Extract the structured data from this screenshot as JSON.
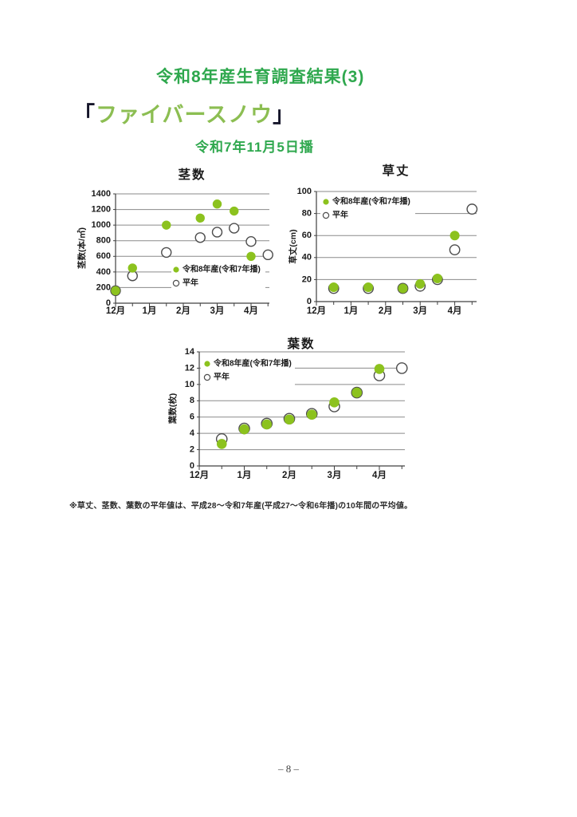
{
  "header": {
    "title": "令和8年産生育調査結果(3)",
    "variety": {
      "open_bracket": "「",
      "name": "ファイバースノウ",
      "close_bracket": "」"
    },
    "sowing_date": "令和7年11月5日播"
  },
  "footer": {
    "note": "※草丈、茎数、葉数の平年値は、平成28～令和7年産(平成27～令和6年播)の10年間の平均値。",
    "page_number": "– 8 –"
  },
  "colors": {
    "title_green": "#2fa84e",
    "variety_green": "#8cbe52",
    "chart_title_green": "#3aa56a",
    "dot_green": "#8cc21e",
    "circle_gray": "#4d4d4d",
    "grid_gray": "#8a8a8a",
    "axis_dark": "#404040"
  },
  "chart_data": [
    {
      "type": "scatter",
      "title": "茎数",
      "ylabel": "茎数(本/㎡)",
      "ylim": [
        0,
        1400
      ],
      "ytick_step": 200,
      "x_tick_labels": [
        "12月",
        "1月",
        "2月",
        "3月",
        "4月"
      ],
      "x_unit": "months after December (0 = 12月)",
      "grid": true,
      "legend_position": "inside-lower-right",
      "series": [
        {
          "name": "令和8年産(令和7年播)",
          "marker": "filled-green-circle",
          "points": [
            [
              0,
              160
            ],
            [
              0.5,
              450
            ],
            [
              1.5,
              1000
            ],
            [
              2.5,
              1090
            ],
            [
              3,
              1270
            ],
            [
              3.5,
              1180
            ],
            [
              4,
              600
            ]
          ]
        },
        {
          "name": "平年",
          "marker": "open-circle",
          "points": [
            [
              0,
              160
            ],
            [
              0.5,
              350
            ],
            [
              1.5,
              650
            ],
            [
              2.5,
              840
            ],
            [
              3,
              910
            ],
            [
              3.5,
              960
            ],
            [
              4,
              790
            ],
            [
              4.5,
              620
            ]
          ]
        }
      ]
    },
    {
      "type": "scatter",
      "title": "草丈",
      "ylabel": "草丈(cm)",
      "ylim": [
        0,
        100
      ],
      "ytick_step": 20,
      "x_tick_labels": [
        "12月",
        "1月",
        "2月",
        "3月",
        "4月"
      ],
      "x_unit": "months after December (0 = 12月)",
      "grid": true,
      "legend_position": "inside-upper-left",
      "series": [
        {
          "name": "令和8年産(令和7年播)",
          "marker": "filled-green-circle",
          "points": [
            [
              0.5,
              13
            ],
            [
              1.5,
              13
            ],
            [
              2.5,
              12
            ],
            [
              3,
              16
            ],
            [
              3.5,
              21
            ],
            [
              4,
              60
            ]
          ]
        },
        {
          "name": "平年",
          "marker": "open-circle",
          "points": [
            [
              0.5,
              12
            ],
            [
              1.5,
              12
            ],
            [
              2.5,
              12
            ],
            [
              3,
              14
            ],
            [
              3.5,
              20
            ],
            [
              4,
              47
            ],
            [
              4.5,
              84
            ]
          ]
        }
      ]
    },
    {
      "type": "scatter",
      "title": "葉数",
      "ylabel": "葉数(枚)",
      "ylim": [
        0,
        14
      ],
      "ytick_step": 2,
      "x_tick_labels": [
        "12月",
        "1月",
        "2月",
        "3月",
        "4月"
      ],
      "x_unit": "months after December (0 = 12月)",
      "grid": true,
      "legend_position": "inside-upper-left",
      "series": [
        {
          "name": "令和8年産(令和7年播)",
          "marker": "filled-green-circle",
          "points": [
            [
              0.5,
              2.7
            ],
            [
              1,
              4.5
            ],
            [
              1.5,
              5.1
            ],
            [
              2,
              5.7
            ],
            [
              2.5,
              6.3
            ],
            [
              3,
              7.8
            ],
            [
              3.5,
              9
            ],
            [
              4,
              11.9
            ]
          ]
        },
        {
          "name": "平年",
          "marker": "open-circle",
          "points": [
            [
              0.5,
              3.3
            ],
            [
              1,
              4.6
            ],
            [
              1.5,
              5.2
            ],
            [
              2,
              5.8
            ],
            [
              2.5,
              6.4
            ],
            [
              3,
              7.3
            ],
            [
              3.5,
              9
            ],
            [
              4,
              11.1
            ],
            [
              4.5,
              12
            ]
          ]
        }
      ]
    }
  ]
}
